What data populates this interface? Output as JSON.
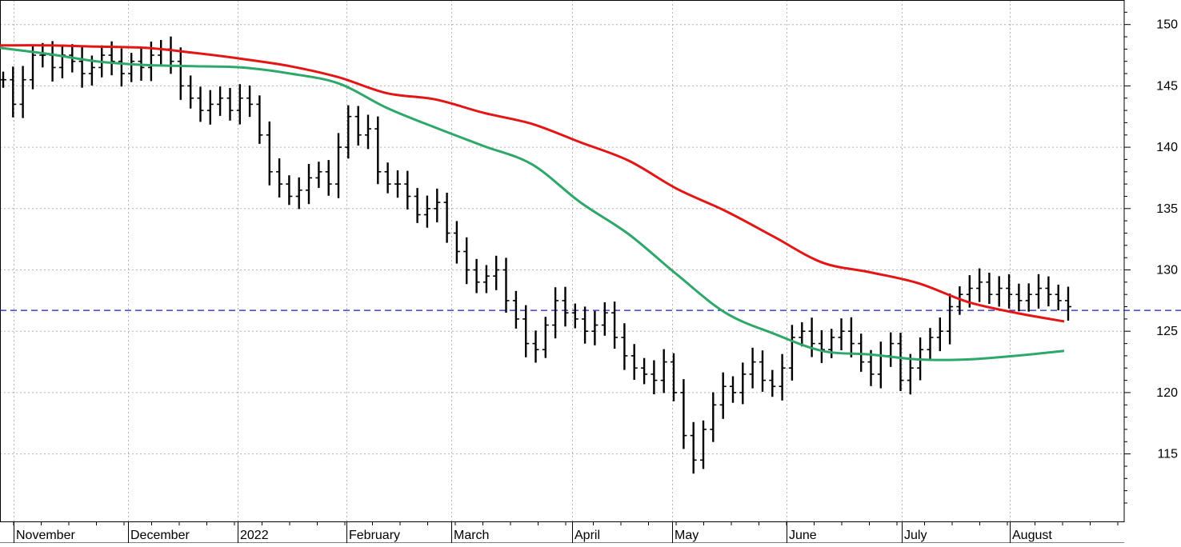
{
  "chart_data": {
    "type": "ohlc",
    "title": "",
    "xlabel": "",
    "ylabel": "",
    "y_axis_position": "right",
    "ylim": [
      109.5,
      152
    ],
    "y_ticks": [
      115,
      120,
      125,
      130,
      135,
      140,
      145,
      150
    ],
    "month_labels": [
      "November",
      "December",
      "2022",
      "February",
      "March",
      "April",
      "May",
      "June",
      "July",
      "August"
    ],
    "grid": true,
    "reference_line": {
      "value": 126.7,
      "style": "dashed",
      "color": "#1a1acc"
    },
    "colors": {
      "price_bars": "#000000",
      "ma_short": "#2ea86a",
      "ma_long": "#e31515",
      "grid": "#b4b4b4",
      "reference": "#1a1acc"
    },
    "ma_long_values": [
      148.3,
      148.3,
      148.2,
      148.1,
      147.7,
      147.2,
      146.6,
      145.7,
      144.4,
      143.9,
      142.8,
      141.9,
      140.4,
      138.9,
      136.6,
      134.8,
      132.7,
      130.6,
      129.8,
      128.9,
      127.4,
      126.5,
      125.8
    ],
    "ma_short_values": [
      148.1,
      147.6,
      147.0,
      146.7,
      146.6,
      146.5,
      146.0,
      145.2,
      143.2,
      141.6,
      140.1,
      138.6,
      135.5,
      132.9,
      129.6,
      126.5,
      124.8,
      123.4,
      123.1,
      122.7,
      122.7,
      123.0,
      123.4
    ],
    "price_path": [
      145.5,
      143.5,
      145.5,
      147.5,
      147.5,
      146.5,
      147.5,
      147.0,
      146.0,
      146.5,
      147.5,
      147.0,
      146.0,
      147.0,
      146.5,
      147.5,
      148.0,
      147.0,
      145.0,
      144.0,
      143.0,
      143.5,
      144.0,
      143.0,
      144.0,
      143.5,
      141.0,
      138.0,
      137.0,
      136.0,
      136.5,
      137.5,
      138.0,
      137.0,
      140.0,
      142.5,
      141.0,
      141.5,
      138.0,
      137.0,
      137.0,
      136.0,
      134.5,
      135.0,
      135.5,
      133.0,
      131.5,
      130.0,
      129.0,
      129.5,
      130.0,
      127.5,
      126.0,
      124.0,
      123.5,
      125.5,
      127.5,
      126.5,
      126.0,
      125.0,
      125.5,
      126.5,
      124.5,
      123.0,
      122.0,
      121.5,
      121.0,
      122.5,
      120.0,
      116.5,
      114.5,
      117.0,
      119.0,
      120.5,
      120.0,
      121.5,
      122.5,
      121.0,
      120.5,
      122.0,
      124.5,
      125.0,
      124.0,
      123.5,
      124.5,
      125.0,
      124.0,
      122.5,
      121.5,
      123.0,
      124.0,
      121.0,
      122.0,
      123.5,
      124.5,
      125.0,
      127.0,
      128.0,
      128.5,
      129.0,
      128.0,
      128.5,
      128.0,
      127.5,
      128.0,
      128.5,
      128.0,
      127.5,
      127.0
    ]
  }
}
